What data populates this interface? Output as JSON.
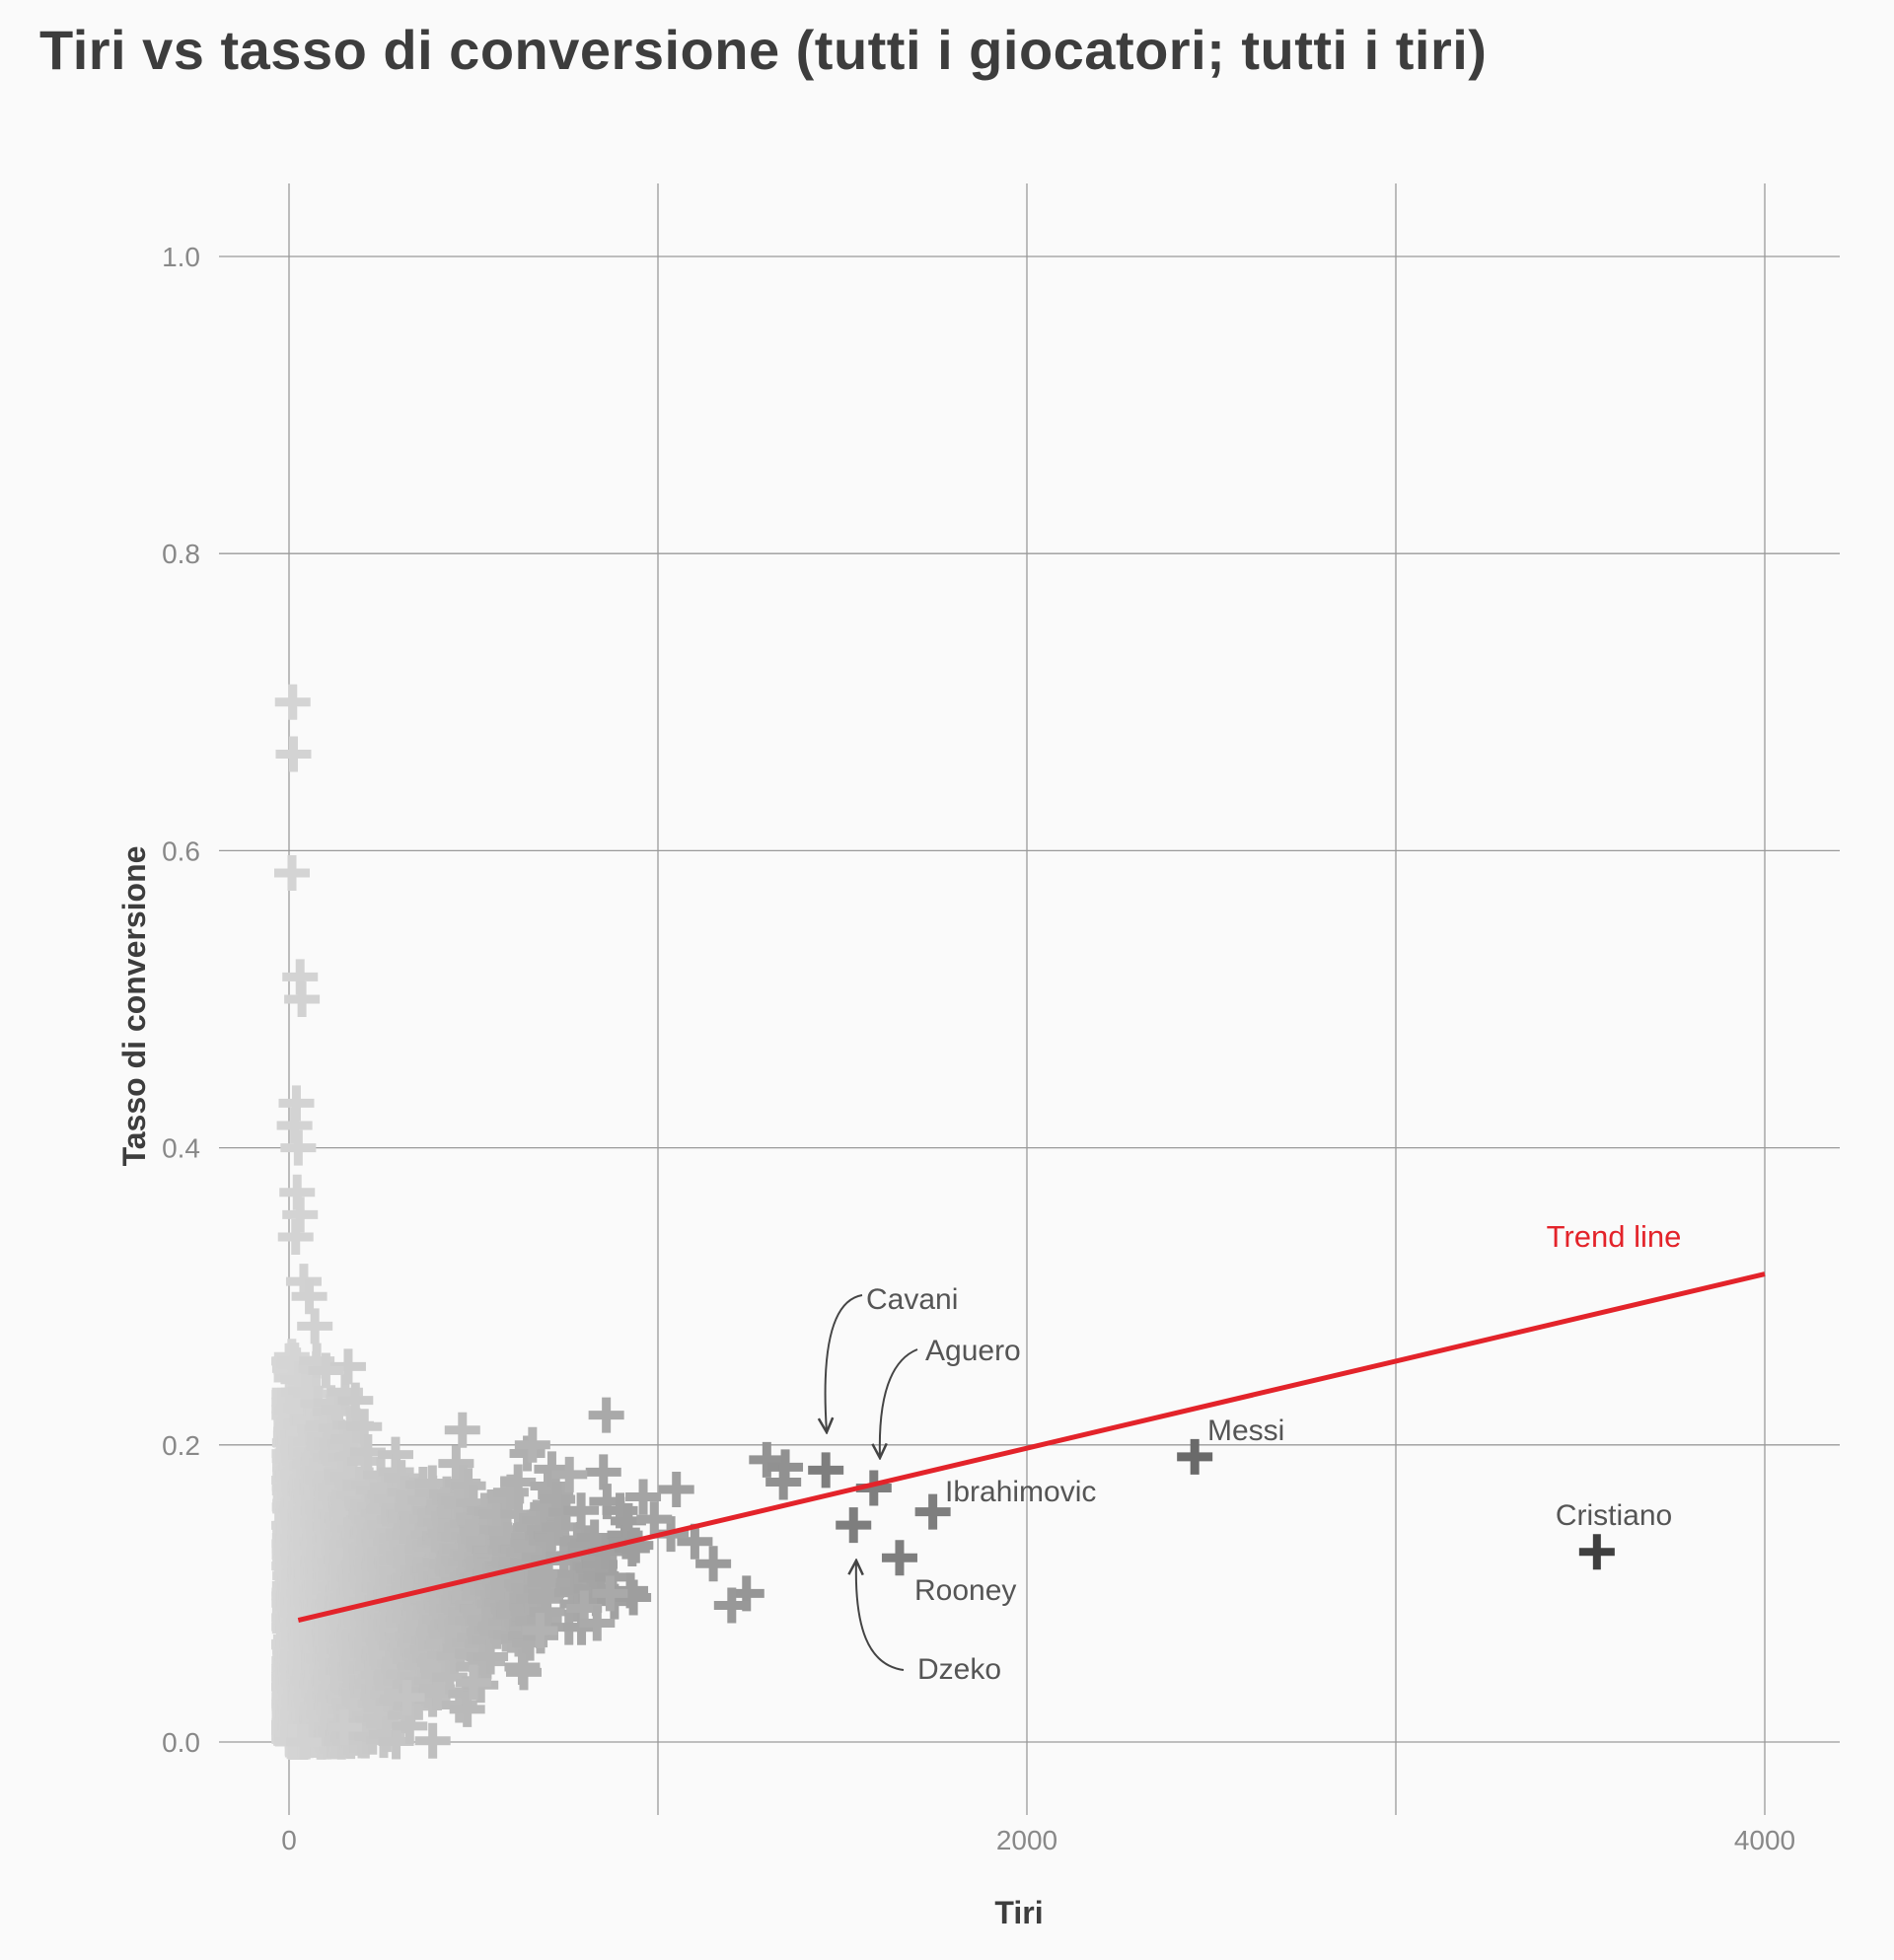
{
  "chart_data": {
    "type": "scatter",
    "title": "Tiri vs tasso di conversione (tutti i giocatori; tutti i tiri)",
    "xlabel": "Tiri",
    "ylabel": "Tasso di conversione",
    "xlim": [
      0,
      4000
    ],
    "ylim": [
      0.0,
      1.0
    ],
    "x_ticks": [
      0,
      1000,
      2000,
      3000,
      4000
    ],
    "x_tick_labels": [
      "0",
      "",
      "2000",
      "",
      "4000"
    ],
    "y_ticks": [
      0.0,
      0.2,
      0.4,
      0.6,
      0.8,
      1.0
    ],
    "y_tick_labels": [
      "0.0",
      "0.2",
      "0.4",
      "0.6",
      "0.8",
      "1.0"
    ],
    "grid": true,
    "marker": "plus",
    "trend_line": {
      "label": "Trend line",
      "color": "#e3232a",
      "x": [
        25,
        4000
      ],
      "y": [
        0.082,
        0.315
      ]
    },
    "highlighted": [
      {
        "name": "Cavani",
        "x": 1455,
        "y": 0.183
      },
      {
        "name": "Aguero",
        "x": 1585,
        "y": 0.171
      },
      {
        "name": "Ibrahimovic",
        "x": 1745,
        "y": 0.155
      },
      {
        "name": "Dzeko",
        "x": 1530,
        "y": 0.146
      },
      {
        "name": "Rooney",
        "x": 1655,
        "y": 0.124
      },
      {
        "name": "Messi",
        "x": 2455,
        "y": 0.192
      },
      {
        "name": "Cristiano",
        "x": 3545,
        "y": 0.128
      }
    ],
    "notable_points": [
      {
        "x": 10,
        "y": 0.7
      },
      {
        "x": 12,
        "y": 0.665
      },
      {
        "x": 8,
        "y": 0.585
      },
      {
        "x": 30,
        "y": 0.515
      },
      {
        "x": 35,
        "y": 0.5
      },
      {
        "x": 20,
        "y": 0.43
      },
      {
        "x": 15,
        "y": 0.415
      },
      {
        "x": 25,
        "y": 0.4
      },
      {
        "x": 22,
        "y": 0.37
      },
      {
        "x": 30,
        "y": 0.355
      },
      {
        "x": 18,
        "y": 0.34
      },
      {
        "x": 40,
        "y": 0.31
      },
      {
        "x": 55,
        "y": 0.3
      },
      {
        "x": 70,
        "y": 0.28
      },
      {
        "x": 100,
        "y": 0.25
      },
      {
        "x": 180,
        "y": 0.23
      },
      {
        "x": 860,
        "y": 0.22
      },
      {
        "x": 470,
        "y": 0.21
      },
      {
        "x": 660,
        "y": 0.2
      },
      {
        "x": 1295,
        "y": 0.19
      },
      {
        "x": 1345,
        "y": 0.185
      },
      {
        "x": 1340,
        "y": 0.175
      },
      {
        "x": 1240,
        "y": 0.1
      },
      {
        "x": 1200,
        "y": 0.092
      },
      {
        "x": 1150,
        "y": 0.12
      },
      {
        "x": 1100,
        "y": 0.135
      },
      {
        "x": 1035,
        "y": 0.14
      },
      {
        "x": 990,
        "y": 0.15
      },
      {
        "x": 1050,
        "y": 0.17
      },
      {
        "x": 960,
        "y": 0.165
      },
      {
        "x": 760,
        "y": 0.18
      },
      {
        "x": 800,
        "y": 0.09
      },
      {
        "x": 835,
        "y": 0.08
      },
      {
        "x": 870,
        "y": 0.1
      },
      {
        "x": 680,
        "y": 0.075
      },
      {
        "x": 500,
        "y": 0.04
      },
      {
        "x": 320,
        "y": 0.03
      },
      {
        "x": 150,
        "y": 0.01
      },
      {
        "x": 10,
        "y": 0.0
      },
      {
        "x": 40,
        "y": 0.0
      }
    ],
    "bulk_cloud": "dense cloud of several thousand players between 0–1000 shots and 0.02–0.25 conversion rate, funnel-shaped toward the origin"
  }
}
